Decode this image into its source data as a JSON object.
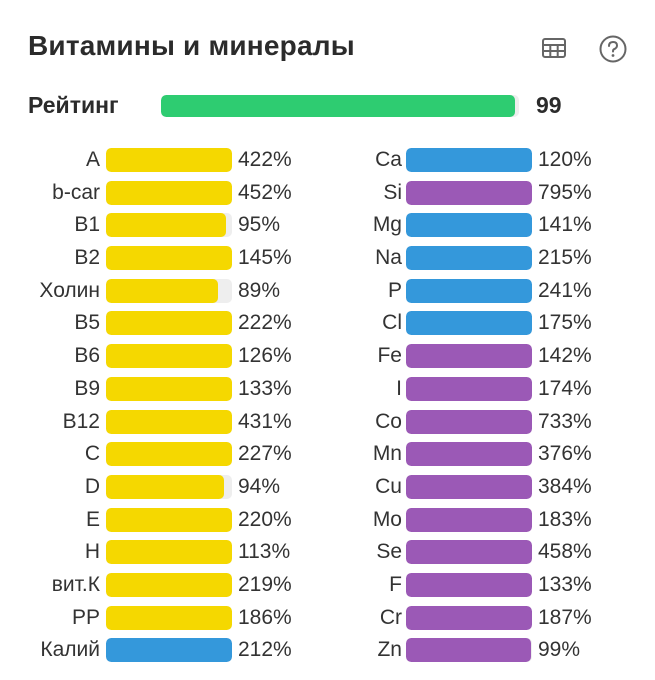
{
  "header": {
    "title": "Витамины и минералы",
    "table_icon": "table-icon",
    "help_icon": "help-circle-icon"
  },
  "rating": {
    "label": "Рейтинг",
    "value": "99",
    "fill_percent": 99,
    "color": "#2ecc71"
  },
  "colors": {
    "vitamin": "#f5d800",
    "macro": "#3498db",
    "micro": "#9b59b6",
    "track": "#eeeeee"
  },
  "left_items": [
    {
      "label": "A",
      "pct": "422%",
      "value": 422,
      "type": "vitamin"
    },
    {
      "label": "b-car",
      "pct": "452%",
      "value": 452,
      "type": "vitamin"
    },
    {
      "label": "B1",
      "pct": "95%",
      "value": 95,
      "type": "vitamin"
    },
    {
      "label": "B2",
      "pct": "145%",
      "value": 145,
      "type": "vitamin"
    },
    {
      "label": "Холин",
      "pct": "89%",
      "value": 89,
      "type": "vitamin"
    },
    {
      "label": "B5",
      "pct": "222%",
      "value": 222,
      "type": "vitamin"
    },
    {
      "label": "B6",
      "pct": "126%",
      "value": 126,
      "type": "vitamin"
    },
    {
      "label": "B9",
      "pct": "133%",
      "value": 133,
      "type": "vitamin"
    },
    {
      "label": "B12",
      "pct": "431%",
      "value": 431,
      "type": "vitamin"
    },
    {
      "label": "C",
      "pct": "227%",
      "value": 227,
      "type": "vitamin"
    },
    {
      "label": "D",
      "pct": "94%",
      "value": 94,
      "type": "vitamin"
    },
    {
      "label": "E",
      "pct": "220%",
      "value": 220,
      "type": "vitamin"
    },
    {
      "label": "H",
      "pct": "113%",
      "value": 113,
      "type": "vitamin"
    },
    {
      "label": "вит.К",
      "pct": "219%",
      "value": 219,
      "type": "vitamin"
    },
    {
      "label": "PP",
      "pct": "186%",
      "value": 186,
      "type": "vitamin"
    },
    {
      "label": "Калий",
      "pct": "212%",
      "value": 212,
      "type": "macro"
    }
  ],
  "right_items": [
    {
      "label": "Ca",
      "pct": "120%",
      "value": 120,
      "type": "macro"
    },
    {
      "label": "Si",
      "pct": "795%",
      "value": 795,
      "type": "micro"
    },
    {
      "label": "Mg",
      "pct": "141%",
      "value": 141,
      "type": "macro"
    },
    {
      "label": "Na",
      "pct": "215%",
      "value": 215,
      "type": "macro"
    },
    {
      "label": "P",
      "pct": "241%",
      "value": 241,
      "type": "macro"
    },
    {
      "label": "Cl",
      "pct": "175%",
      "value": 175,
      "type": "macro"
    },
    {
      "label": "Fe",
      "pct": "142%",
      "value": 142,
      "type": "micro"
    },
    {
      "label": "I",
      "pct": "174%",
      "value": 174,
      "type": "micro"
    },
    {
      "label": "Co",
      "pct": "733%",
      "value": 733,
      "type": "micro"
    },
    {
      "label": "Mn",
      "pct": "376%",
      "value": 376,
      "type": "micro"
    },
    {
      "label": "Cu",
      "pct": "384%",
      "value": 384,
      "type": "micro"
    },
    {
      "label": "Mo",
      "pct": "183%",
      "value": 183,
      "type": "micro"
    },
    {
      "label": "Se",
      "pct": "458%",
      "value": 458,
      "type": "micro"
    },
    {
      "label": "F",
      "pct": "133%",
      "value": 133,
      "type": "micro"
    },
    {
      "label": "Cr",
      "pct": "187%",
      "value": 187,
      "type": "micro"
    },
    {
      "label": "Zn",
      "pct": "99%",
      "value": 99,
      "type": "micro"
    }
  ]
}
